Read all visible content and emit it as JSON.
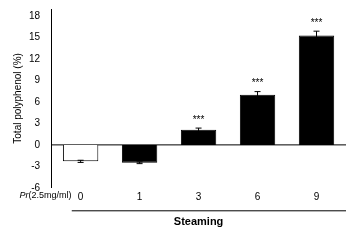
{
  "chart_data": {
    "type": "bar",
    "categories": [
      "0",
      "1",
      "3",
      "6",
      "9"
    ],
    "values": [
      -2.3,
      -2.5,
      2.1,
      7.0,
      15.3
    ],
    "errors": [
      0.15,
      0.12,
      0.25,
      0.45,
      0.6
    ],
    "colors": [
      "white",
      "black",
      "black",
      "black",
      "black"
    ],
    "significance": [
      null,
      null,
      "***",
      "***",
      "***"
    ],
    "ylabel": "Total polyphenol (%)",
    "xlabel": "Steaming",
    "xlabel_prefix": {
      "italic": "Pr",
      "normal": "(2.5mg/ml)"
    },
    "ylim": [
      -6,
      19
    ],
    "yticks": [
      -6,
      -3,
      0,
      3,
      6,
      9,
      12,
      15,
      18
    ],
    "grid": false
  }
}
